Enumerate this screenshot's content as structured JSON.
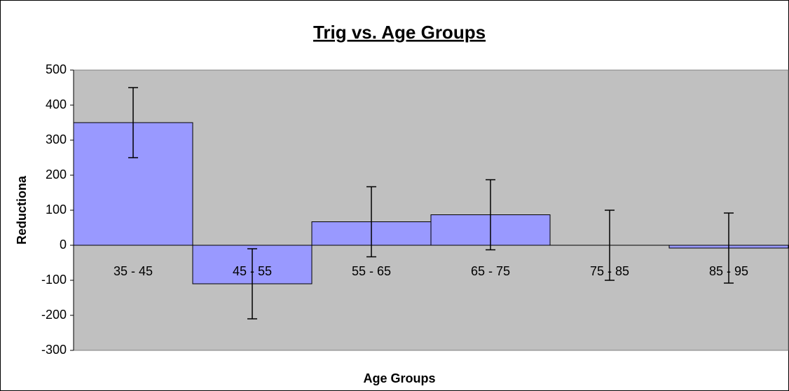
{
  "chart_data": {
    "type": "bar",
    "title": "Trig vs. Age Groups",
    "x_label": "Age Groups",
    "y_label": "Reductiona",
    "categories": [
      "35 - 45",
      "45 - 55",
      "55 - 65",
      "65 - 75",
      "75 - 85",
      "85 - 95"
    ],
    "values": [
      350,
      -110,
      67,
      87,
      0,
      -8
    ],
    "errors": [
      100,
      100,
      100,
      100,
      100,
      100
    ],
    "color": "#9999ff",
    "ylim": [
      -300,
      500
    ],
    "yticks": [
      -300,
      -200,
      -100,
      0,
      100,
      200,
      300,
      400,
      500
    ],
    "grid": false
  }
}
